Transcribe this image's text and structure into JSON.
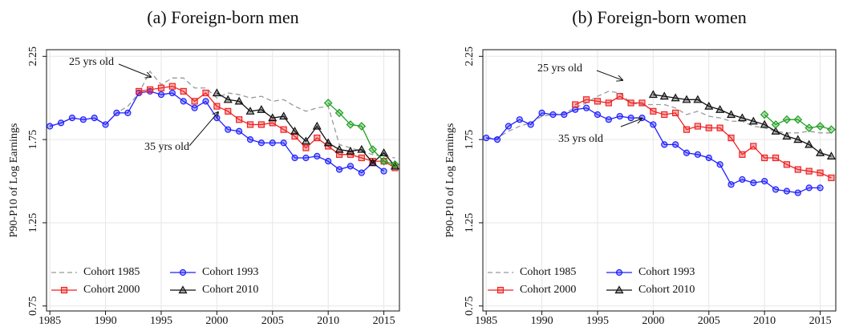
{
  "chart_data": [
    {
      "type": "line",
      "title": "(a) Foreign-born men",
      "ylabel": "P90-P10 of Log Earnings",
      "x": [
        1985,
        1986,
        1987,
        1988,
        1989,
        1990,
        1991,
        1992,
        1993,
        1994,
        1995,
        1996,
        1997,
        1998,
        1999,
        2000,
        2001,
        2002,
        2003,
        2004,
        2005,
        2006,
        2007,
        2008,
        2009,
        2010,
        2011,
        2012,
        2013,
        2014,
        2015,
        2016
      ],
      "xlim": [
        1984.7,
        2016.4
      ],
      "xticks": [
        1985,
        1990,
        1995,
        2000,
        2005,
        2010,
        2015
      ],
      "ylim": [
        0.72,
        2.29
      ],
      "yticks": [
        0.75,
        1.25,
        1.75,
        2.25
      ],
      "grid": true,
      "legend": "lower left",
      "series": [
        {
          "name": "Cohort 1985",
          "color": "#999999",
          "marker": "none",
          "dash": true,
          "values": [
            1.83,
            1.85,
            1.88,
            1.87,
            1.88,
            1.84,
            1.91,
            1.95,
            2.03,
            2.16,
            2.08,
            2.12,
            2.12,
            2.06,
            2.06,
            2.0,
            2.03,
            2.02,
            2.0,
            2.01,
            1.98,
            1.99,
            1.95,
            1.92,
            1.94,
            1.95,
            1.72,
            1.7,
            1.68,
            1.66,
            1.65,
            1.64
          ]
        },
        {
          "name": "Cohort 1993",
          "color": "#1f1fff",
          "marker": "circle",
          "values": [
            1.83,
            1.85,
            1.88,
            1.87,
            1.88,
            1.84,
            1.91,
            1.91,
            2.03,
            2.04,
            2.02,
            2.03,
            1.98,
            1.94,
            1.98,
            1.88,
            1.81,
            1.8,
            1.75,
            1.73,
            1.73,
            1.73,
            1.64,
            1.64,
            1.65,
            1.62,
            1.57,
            1.59,
            1.55,
            1.61,
            1.56,
            null
          ]
        },
        {
          "name": "Cohort 2000",
          "color": "#ee2222",
          "marker": "square",
          "values": [
            null,
            null,
            null,
            null,
            null,
            null,
            null,
            null,
            2.04,
            2.05,
            2.06,
            2.07,
            2.04,
            1.98,
            2.03,
            1.95,
            1.92,
            1.87,
            1.84,
            1.84,
            1.85,
            1.81,
            1.77,
            1.7,
            1.76,
            1.71,
            1.66,
            1.66,
            1.64,
            1.62,
            1.62,
            1.58
          ]
        },
        {
          "name": "Cohort 2010",
          "color": "#111111",
          "marker": "triangle",
          "values": [
            null,
            null,
            null,
            null,
            null,
            null,
            null,
            null,
            null,
            null,
            null,
            null,
            null,
            null,
            null,
            2.03,
            1.99,
            1.98,
            1.92,
            1.93,
            1.88,
            1.89,
            1.8,
            1.74,
            1.83,
            1.73,
            1.69,
            1.68,
            1.69,
            1.61,
            1.67,
            1.59
          ]
        },
        {
          "color": "#22a022",
          "marker": "diamond",
          "values": [
            null,
            null,
            null,
            null,
            null,
            null,
            null,
            null,
            null,
            null,
            null,
            null,
            null,
            null,
            null,
            null,
            null,
            null,
            null,
            null,
            null,
            null,
            null,
            null,
            null,
            1.97,
            1.91,
            1.84,
            1.83,
            1.69,
            1.62,
            1.6
          ]
        }
      ],
      "annotations": [
        "25 yrs old",
        "35 yrs old"
      ]
    },
    {
      "type": "line",
      "title": "(b) Foreign-born women",
      "ylabel": "P90-P10 of Log Earnings",
      "x": [
        1985,
        1986,
        1987,
        1988,
        1989,
        1990,
        1991,
        1992,
        1993,
        1994,
        1995,
        1996,
        1997,
        1998,
        1999,
        2000,
        2001,
        2002,
        2003,
        2004,
        2005,
        2006,
        2007,
        2008,
        2009,
        2010,
        2011,
        2012,
        2013,
        2014,
        2015,
        2016
      ],
      "xlim": [
        1984.7,
        2016.4
      ],
      "xticks": [
        1985,
        1990,
        1995,
        2000,
        2005,
        2010,
        2015
      ],
      "ylim": [
        0.72,
        2.29
      ],
      "yticks": [
        0.75,
        1.25,
        1.75,
        2.25
      ],
      "grid": true,
      "legend": "lower left",
      "series": [
        {
          "name": "Cohort 1985",
          "color": "#999999",
          "marker": "none",
          "dash": true,
          "values": [
            1.76,
            1.76,
            1.8,
            1.83,
            1.85,
            1.89,
            1.9,
            1.91,
            1.94,
            1.97,
            2.01,
            2.04,
            2.03,
            1.97,
            1.96,
            1.96,
            1.96,
            1.94,
            1.9,
            1.92,
            1.89,
            1.88,
            1.86,
            1.86,
            1.83,
            1.82,
            1.8,
            1.79,
            1.79,
            1.8,
            1.79,
            1.79
          ]
        },
        {
          "name": "Cohort 1993",
          "color": "#1f1fff",
          "marker": "circle",
          "values": [
            1.76,
            1.75,
            1.83,
            1.87,
            1.84,
            1.91,
            1.9,
            1.9,
            1.93,
            1.94,
            1.9,
            1.87,
            1.89,
            1.88,
            1.88,
            1.84,
            1.72,
            1.72,
            1.67,
            1.66,
            1.64,
            1.6,
            1.48,
            1.51,
            1.49,
            1.5,
            1.45,
            1.44,
            1.43,
            1.46,
            1.46,
            null
          ]
        },
        {
          "name": "Cohort 2000",
          "color": "#ee2222",
          "marker": "square",
          "values": [
            null,
            null,
            null,
            null,
            null,
            null,
            null,
            null,
            1.96,
            1.99,
            1.98,
            1.97,
            2.01,
            1.97,
            1.97,
            1.92,
            1.9,
            1.91,
            1.81,
            1.83,
            1.82,
            1.82,
            1.76,
            1.66,
            1.71,
            1.64,
            1.64,
            1.6,
            1.57,
            1.56,
            1.55,
            1.52
          ]
        },
        {
          "name": "Cohort 2010",
          "color": "#111111",
          "marker": "triangle",
          "values": [
            null,
            null,
            null,
            null,
            null,
            null,
            null,
            null,
            null,
            null,
            null,
            null,
            null,
            null,
            null,
            2.02,
            2.01,
            2.0,
            1.99,
            1.99,
            1.95,
            1.93,
            1.9,
            1.88,
            1.86,
            1.84,
            1.8,
            1.77,
            1.75,
            1.72,
            1.67,
            1.65
          ]
        },
        {
          "color": "#22a022",
          "marker": "diamond",
          "values": [
            null,
            null,
            null,
            null,
            null,
            null,
            null,
            null,
            null,
            null,
            null,
            null,
            null,
            null,
            null,
            null,
            null,
            null,
            null,
            null,
            null,
            null,
            null,
            null,
            null,
            1.9,
            1.84,
            1.87,
            1.87,
            1.82,
            1.83,
            1.81
          ]
        }
      ],
      "annotations": [
        "25 yrs old",
        "35 yrs old"
      ]
    }
  ]
}
